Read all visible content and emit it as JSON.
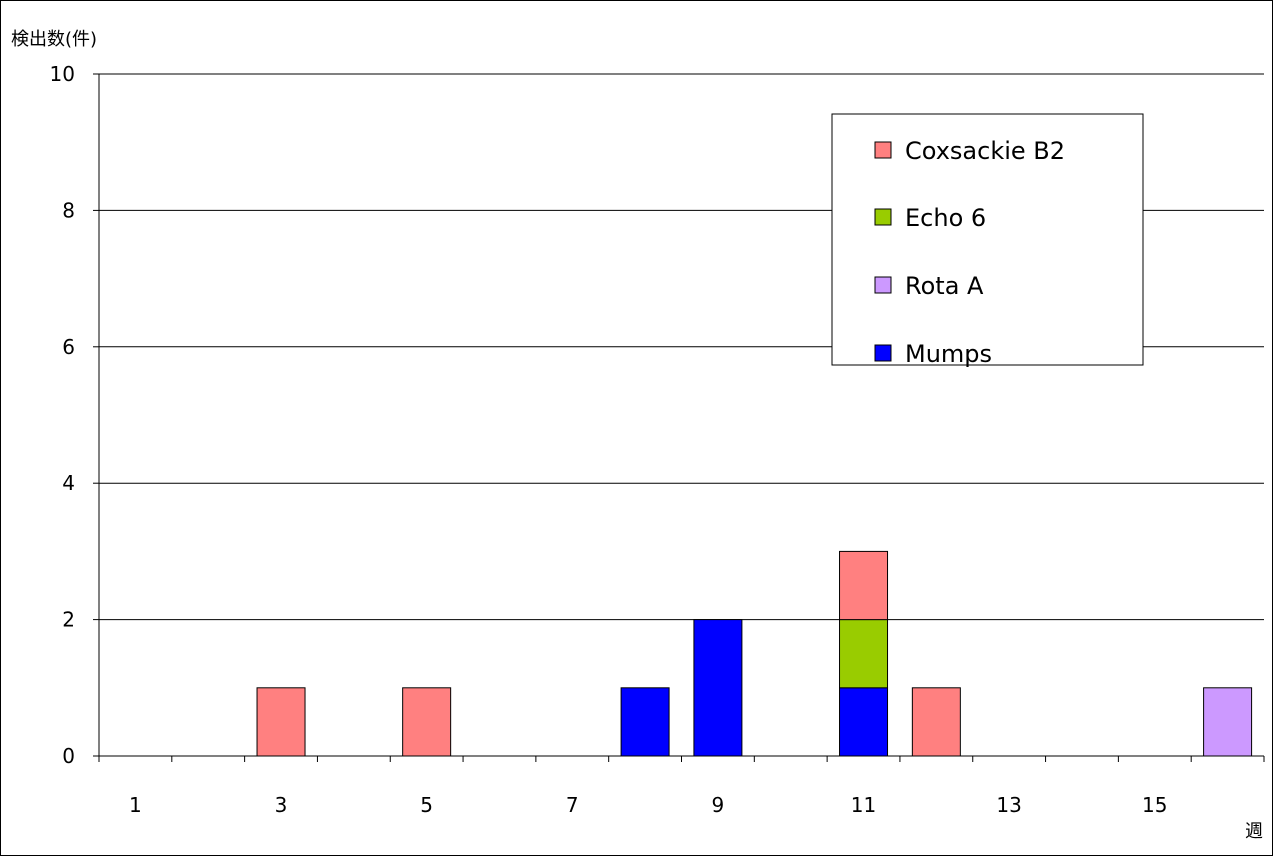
{
  "chart_data": {
    "type": "bar",
    "stacked": true,
    "ylabel": "検出数(件)",
    "xlabel": "週",
    "ylim": [
      0,
      10
    ],
    "yticks": [
      0,
      2,
      4,
      6,
      8,
      10
    ],
    "categories": [
      1,
      2,
      3,
      4,
      5,
      6,
      7,
      8,
      9,
      10,
      11,
      12,
      13,
      14,
      15,
      16
    ],
    "xtick_labels": [
      "1",
      "3",
      "5",
      "7",
      "9",
      "11",
      "13",
      "15"
    ],
    "grid": true,
    "legend_position": "top-right",
    "series": [
      {
        "name": "Mumps",
        "color": "#0000FF",
        "values": [
          0,
          0,
          0,
          0,
          0,
          0,
          0,
          1,
          2,
          0,
          1,
          0,
          0,
          0,
          0,
          0
        ]
      },
      {
        "name": "Rota A",
        "color": "#CC99FF",
        "values": [
          0,
          0,
          0,
          0,
          0,
          0,
          0,
          0,
          0,
          0,
          0,
          0,
          0,
          0,
          0,
          1
        ]
      },
      {
        "name": "Echo 6",
        "color": "#99CC00",
        "values": [
          0,
          0,
          0,
          0,
          0,
          0,
          0,
          0,
          0,
          0,
          1,
          0,
          0,
          0,
          0,
          0
        ]
      },
      {
        "name": "Coxsackie B2",
        "color": "#FF8080",
        "values": [
          0,
          0,
          1,
          0,
          1,
          0,
          0,
          0,
          0,
          0,
          1,
          1,
          0,
          0,
          0,
          0
        ]
      }
    ],
    "legend_order": [
      "Coxsackie B2",
      "Echo 6",
      "Rota A",
      "Mumps"
    ]
  }
}
